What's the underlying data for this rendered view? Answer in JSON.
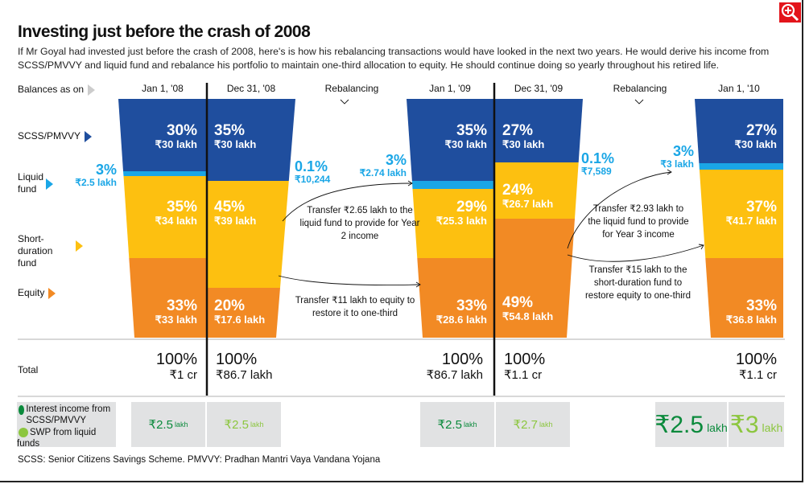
{
  "title": "Investing just before the crash of 2008",
  "intro": "If Mr Goyal had invested just before the crash of 2008, here's is how his rebalancing transactions would have looked in the next two years. He would derive his income from SCSS/PMVVY and liquid fund and rebalance his portfolio to maintain one-third allocation to equity. He should continue doing so yearly throughout his retired life.",
  "zoom_icon": "magnifier-plus-icon",
  "colors": {
    "scss": "#1f4e9e",
    "liquid": "#1aa6e6",
    "short": "#fdc010",
    "equity": "#f28a24",
    "interest": "#0b8a3c",
    "swp": "#8cc63f"
  },
  "row_labels": {
    "balances": "Balances as on",
    "scss": "SCSS/PMVVY",
    "liquid": "Liquid fund",
    "short": "Short-duration fund",
    "equity": "Equity",
    "total": "Total"
  },
  "columns": [
    {
      "date": "Jan 1, '08",
      "scss": {
        "pct": "30%",
        "amt": "₹30 lakh"
      },
      "liquid": {
        "pct": "3%",
        "amt": "₹2.5 lakh"
      },
      "short": {
        "pct": "35%",
        "amt": "₹34 lakh"
      },
      "equity": {
        "pct": "33%",
        "amt": "₹33 lakh"
      },
      "total": {
        "pct": "100%",
        "amt": "₹1 cr"
      },
      "interest": "₹2.5",
      "swp": "₹2.5"
    },
    {
      "date": "Dec 31, '08",
      "scss": {
        "pct": "35%",
        "amt": "₹30 lakh"
      },
      "liquid": {
        "pct": "0.1%",
        "amt": "₹10,244"
      },
      "short": {
        "pct": "45%",
        "amt": "₹39 lakh"
      },
      "equity": {
        "pct": "20%",
        "amt": "₹17.6 lakh"
      },
      "total": {
        "pct": "100%",
        "amt": "₹86.7 lakh"
      }
    },
    {
      "date": "Jan 1, '09",
      "scss": {
        "pct": "35%",
        "amt": "₹30 lakh"
      },
      "liquid": {
        "pct": "3%",
        "amt": "₹2.74 lakh"
      },
      "short": {
        "pct": "29%",
        "amt": "₹25.3 lakh"
      },
      "equity": {
        "pct": "33%",
        "amt": "₹28.6 lakh"
      },
      "total": {
        "pct": "100%",
        "amt": "₹86.7 lakh"
      },
      "interest": "₹2.5",
      "swp": "₹2.7"
    },
    {
      "date": "Dec 31, '09",
      "scss": {
        "pct": "27%",
        "amt": "₹30 lakh"
      },
      "liquid": {
        "pct": "0.1%",
        "amt": "₹7,589"
      },
      "short": {
        "pct": "24%",
        "amt": "₹26.7 lakh"
      },
      "equity": {
        "pct": "49%",
        "amt": "₹54.8 lakh"
      },
      "total": {
        "pct": "100%",
        "amt": "₹1.1 cr"
      }
    },
    {
      "date": "Jan 1, '10",
      "scss": {
        "pct": "27%",
        "amt": "₹30 lakh"
      },
      "liquid": {
        "pct": "3%",
        "amt": "₹3 lakh"
      },
      "short": {
        "pct": "37%",
        "amt": "₹41.7 lakh"
      },
      "equity": {
        "pct": "33%",
        "amt": "₹36.8 lakh"
      },
      "total": {
        "pct": "100%",
        "amt": "₹1.1 cr"
      },
      "interest": "₹2.5",
      "swp": "₹3"
    }
  ],
  "rebalancing": [
    {
      "label": "Rebalancing",
      "note1": "Transfer ₹2.65 lakh to the liquid fund to provide for Year 2 income",
      "note2": "Transfer ₹11 lakh to equity to restore it to one-third"
    },
    {
      "label": "Rebalancing",
      "note1": "Transfer ₹2.93 lakh to the liquid fund to provide for Year 3 income",
      "note2": "Transfer  ₹15 lakh to the short-duration fund to restore equity to one-third"
    }
  ],
  "legend": {
    "interest": "Interest income from SCSS/PMVVY",
    "swp": "SWP from liquid funds",
    "unit": "lakh"
  },
  "footnote": "SCSS: Senior Citizens Savings Scheme. PMVVY: Pradhan Mantri Vaya Vandana Yojana"
}
